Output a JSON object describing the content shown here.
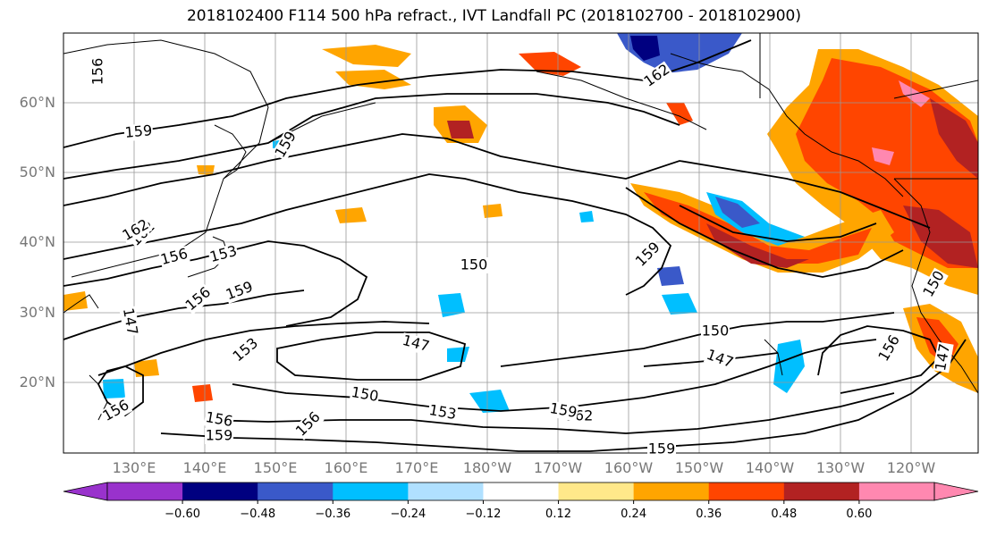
{
  "title": "2018102400 F114 500 hPa refract., IVT Landfall PC (2018102700 - 2018102900)",
  "lat_labels": [
    "60°N",
    "50°N",
    "40°N",
    "30°N",
    "20°N"
  ],
  "lon_labels": [
    "130°E",
    "140°E",
    "150°E",
    "160°E",
    "170°E",
    "180°W",
    "170°W",
    "160°W",
    "150°W",
    "140°W",
    "130°W",
    "120°W"
  ],
  "contour_labels": [
    "156",
    "159",
    "162",
    "162",
    "156",
    "153",
    "156",
    "159",
    "147",
    "150",
    "153",
    "147",
    "150",
    "159",
    "159",
    "156",
    "159",
    "162",
    "156",
    "159",
    "159",
    "156",
    "150",
    "153",
    "147",
    "147",
    "156",
    "162",
    "150"
  ],
  "colorbar": {
    "ticks": [
      "−0.60",
      "−0.48",
      "−0.36",
      "−0.24",
      "−0.12",
      "0.12",
      "0.24",
      "0.36",
      "0.48",
      "0.60"
    ],
    "colors": [
      "#9932cc",
      "#000080",
      "#3a59c9",
      "#00bfff",
      "#b0e0ff",
      "#ffffff",
      "#ffe88a",
      "#ffa500",
      "#ff4500",
      "#b22222",
      "#ff88b0"
    ]
  }
}
